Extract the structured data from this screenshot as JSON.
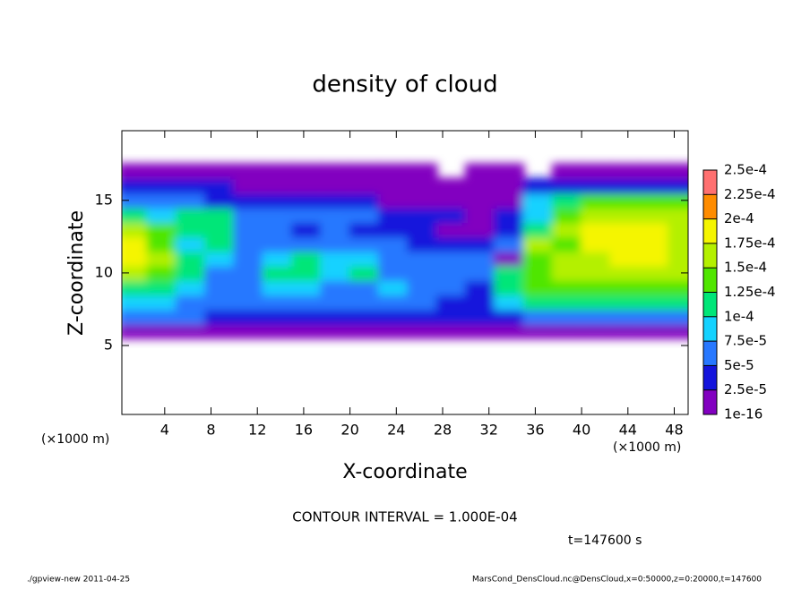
{
  "chart_data": {
    "type": "contour",
    "title": "density of cloud",
    "x_label": "X-coordinate",
    "y_label": "Z-coordinate",
    "x_unit": "(×1000 m)",
    "y_unit": "(×1000 m)",
    "contour_note": "CONTOUR INTERVAL = 1.000E-04",
    "time_note": "t=147600 s",
    "footer_left": "./gpview-new  2011-04-25",
    "footer_right": "MarsCond_DensCloud.nc@DensCloud,x=0:50000,z=0:20000,t=147600",
    "xlim": [
      0.3,
      49.2
    ],
    "ylim": [
      0.25,
      19.8
    ],
    "xticks": [
      4,
      8,
      12,
      16,
      20,
      24,
      28,
      32,
      36,
      40,
      44,
      48
    ],
    "yticks": [
      5,
      10,
      15
    ],
    "x": [
      1.25,
      3.75,
      6.25,
      8.75,
      11.25,
      13.75,
      16.25,
      18.75,
      21.25,
      23.75,
      26.25,
      28.75,
      31.25,
      33.75,
      36.25,
      38.75,
      41.25,
      43.75,
      46.25,
      48.75
    ],
    "y": [
      6,
      7,
      8,
      9,
      10,
      11,
      12,
      13,
      14,
      15,
      16,
      17
    ],
    "values": [
      [
        1e-05,
        1e-05,
        1e-05,
        1e-05,
        1e-05,
        1e-05,
        1e-05,
        1e-05,
        1e-05,
        1e-05,
        1e-05,
        1e-05,
        1e-05,
        1e-05,
        1e-05,
        1e-05,
        1e-05,
        1e-05,
        1e-05,
        1e-05
      ],
      [
        6e-05,
        5e-05,
        5e-05,
        4e-05,
        3e-05,
        4e-05,
        3e-05,
        4e-05,
        3e-05,
        4e-05,
        4e-05,
        3e-05,
        3e-05,
        4e-05,
        6e-05,
        6e-05,
        6e-05,
        6e-05,
        6e-05,
        6e-05
      ],
      [
        9e-05,
        8e-05,
        7e-05,
        6e-05,
        7e-05,
        6e-05,
        7e-05,
        6e-05,
        6e-05,
        6e-05,
        5e-05,
        4e-05,
        3e-05,
        8e-05,
        0.00011,
        0.00011,
        0.00011,
        0.00011,
        0.000105,
        0.000105
      ],
      [
        0.00012,
        0.00011,
        9e-05,
        7e-05,
        7e-05,
        8e-05,
        8e-05,
        7e-05,
        7e-05,
        8e-05,
        7e-05,
        6e-05,
        4e-05,
        0.00012,
        0.00013,
        0.00014,
        0.00014,
        0.00014,
        0.00014,
        0.00014
      ],
      [
        0.00015,
        0.00014,
        0.00012,
        7e-05,
        6e-05,
        0.0001,
        0.00012,
        9e-05,
        0.0001,
        7e-05,
        6e-05,
        6e-05,
        5e-05,
        0.00011,
        0.00014,
        0.00015,
        0.00016,
        0.00016,
        0.00016,
        0.00015
      ],
      [
        0.00018,
        0.00015,
        0.0001,
        8e-05,
        6e-05,
        9e-05,
        0.00011,
        9e-05,
        8e-05,
        6e-05,
        5e-05,
        6e-05,
        5e-05,
        2e-05,
        0.00014,
        0.00016,
        0.00017,
        0.000175,
        0.000175,
        0.00016
      ],
      [
        0.00018,
        0.00014,
        9e-05,
        0.0001,
        7e-05,
        6e-05,
        6e-05,
        5e-05,
        6e-05,
        5e-05,
        4e-05,
        4e-05,
        3e-05,
        6e-05,
        0.00015,
        0.00013,
        0.000175,
        0.00018,
        0.00018,
        0.00017
      ],
      [
        0.00016,
        0.00013,
        0.00012,
        0.00011,
        6e-05,
        5e-05,
        4e-05,
        5e-05,
        4e-05,
        3e-05,
        3e-05,
        2e-05,
        2e-05,
        3e-05,
        0.00012,
        0.00016,
        0.00018,
        0.00018,
        0.00018,
        0.00016
      ],
      [
        0.00011,
        9e-05,
        0.0001,
        0.0001,
        6e-05,
        6e-05,
        5e-05,
        5e-05,
        5e-05,
        3e-05,
        3e-05,
        3e-05,
        2e-05,
        4e-05,
        9e-05,
        0.00013,
        0.00017,
        0.00017,
        0.00017,
        0.00016
      ],
      [
        6e-05,
        6e-05,
        5e-05,
        4e-05,
        4e-05,
        4e-05,
        4e-05,
        4e-05,
        3e-05,
        2e-05,
        2e-05,
        2e-05,
        2e-05,
        2e-05,
        8e-05,
        0.00012,
        0.00014,
        0.00014,
        0.00014,
        0.00013
      ],
      [
        3e-05,
        3e-05,
        3e-05,
        3e-05,
        2e-05,
        2e-05,
        2e-05,
        2e-05,
        2e-05,
        2e-05,
        1e-05,
        1e-05,
        1e-05,
        1e-05,
        3e-05,
        4e-05,
        4e-05,
        4e-05,
        4e-05,
        4e-05
      ],
      [
        1e-05,
        1e-05,
        1e-05,
        1e-05,
        1e-05,
        1e-05,
        1e-05,
        1e-05,
        1e-05,
        1e-05,
        1e-05,
        null,
        1e-05,
        1e-05,
        null,
        1e-05,
        1e-05,
        1e-05,
        1e-05,
        1e-05
      ]
    ],
    "levels": [
      1e-16,
      {
        "value": 2.5e-05,
        "label": "2.5e-5"
      },
      {
        "value": 5e-05,
        "label": "5e-5"
      },
      {
        "value": 7.5e-05,
        "label": "7.5e-5"
      },
      {
        "value": 0.0001,
        "label": "1e-4"
      },
      {
        "value": 0.000125,
        "label": "1.25e-4"
      },
      {
        "value": 0.00015,
        "label": "1.5e-4"
      },
      {
        "value": 0.000175,
        "label": "1.75e-4"
      },
      {
        "value": 0.0002,
        "label": "2e-4"
      },
      {
        "value": 0.000225,
        "label": "2.25e-4"
      },
      {
        "value": 0.00025,
        "label": "2.5e-4"
      }
    ],
    "colors": [
      "#8200c0",
      "#1414dc",
      "#2878ff",
      "#14d2ff",
      "#00e678",
      "#50e600",
      "#b4f000",
      "#f5f500",
      "#ff8c00",
      "#ff7070"
    ]
  }
}
